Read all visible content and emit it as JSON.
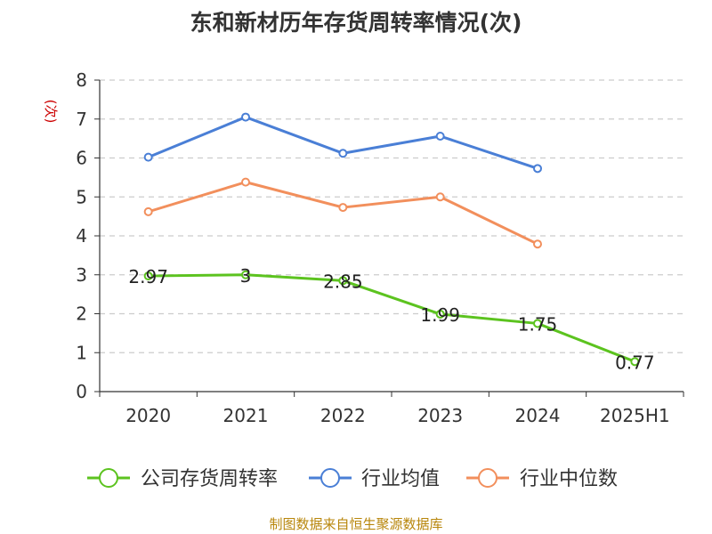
{
  "chart_data": {
    "type": "line",
    "title": "东和新材历年存货周转率情况(次)",
    "ylabel": "(次)",
    "xlabel": "",
    "categories": [
      "2020",
      "2021",
      "2022",
      "2023",
      "2024",
      "2025H1"
    ],
    "ylim": [
      0,
      8
    ],
    "yticks": [
      "0",
      "1",
      "2",
      "3",
      "4",
      "5",
      "6",
      "7",
      "8"
    ],
    "grid": true,
    "legend_position": "bottom",
    "series": [
      {
        "name": "公司存货周转率",
        "color": "#5cc31f",
        "values": [
          2.97,
          3,
          2.85,
          1.99,
          1.75,
          0.77
        ],
        "labels": [
          "2.97",
          "3",
          "2.85",
          "1.99",
          "1.75",
          "0.77"
        ]
      },
      {
        "name": "行业均值",
        "color": "#4a7fd6",
        "values": [
          6.02,
          7.05,
          6.12,
          6.56,
          5.73,
          null
        ]
      },
      {
        "name": "行业中位数",
        "color": "#f28f5c",
        "values": [
          4.62,
          5.38,
          4.73,
          5.0,
          3.79,
          null
        ]
      }
    ],
    "source": "制图数据来自恒生聚源数据库"
  }
}
